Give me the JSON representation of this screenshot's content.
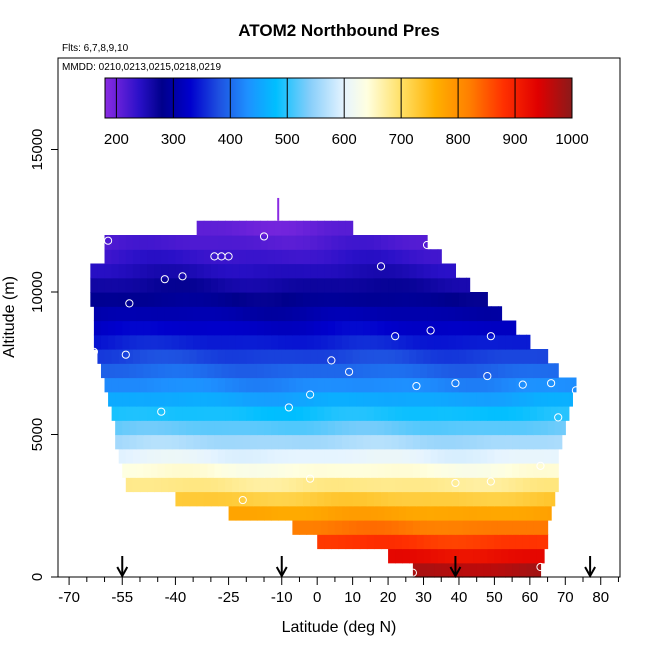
{
  "chart_data": {
    "type": "heatmap",
    "title": "ATOM2 Northbound Pres",
    "flights_note": "Flts: 6,7,8,9,10",
    "dates_note": "MMDD: 0210,0213,0215,0218,0219",
    "xlabel": "Latitude (deg N)",
    "ylabel": "Altitude (m)",
    "xlim": [
      -72,
      86
    ],
    "ylim": [
      0,
      18000
    ],
    "x_ticks": [
      -70,
      -55,
      -40,
      -25,
      -10,
      0,
      10,
      20,
      30,
      40,
      50,
      60,
      70,
      80
    ],
    "x_tick_labels": [
      "-70",
      "-55",
      "-40",
      "-25",
      "-10",
      "0",
      "10",
      "20",
      "30",
      "40",
      "50",
      "60",
      "70",
      "80"
    ],
    "x_minor_ticks": [
      -65,
      -60,
      -50,
      -45,
      -35,
      -30,
      -20,
      -15,
      -5,
      5,
      15,
      25,
      35,
      45,
      55,
      65,
      75,
      85
    ],
    "y_ticks": [
      0,
      5000,
      10000,
      15000
    ],
    "y_tick_labels": [
      "0",
      "5000",
      "10000",
      "15000"
    ],
    "colorbar": {
      "min": 180,
      "max": 1000,
      "ticks": [
        200,
        300,
        400,
        500,
        600,
        700,
        800,
        900,
        1000
      ],
      "tick_labels": [
        "200",
        "300",
        "400",
        "500",
        "600",
        "700",
        "800",
        "900",
        "1000"
      ],
      "gradient_stops": [
        {
          "value": 180,
          "color": "#8a2be2"
        },
        {
          "value": 240,
          "color": "#2a10c8"
        },
        {
          "value": 280,
          "color": "#00008b"
        },
        {
          "value": 330,
          "color": "#0000cd"
        },
        {
          "value": 380,
          "color": "#1e50e0"
        },
        {
          "value": 430,
          "color": "#1e90ff"
        },
        {
          "value": 480,
          "color": "#00bfff"
        },
        {
          "value": 540,
          "color": "#87cefa"
        },
        {
          "value": 600,
          "color": "#e6f4ff"
        },
        {
          "value": 640,
          "color": "#ffffe0"
        },
        {
          "value": 700,
          "color": "#ffe066"
        },
        {
          "value": 760,
          "color": "#ffb000"
        },
        {
          "value": 820,
          "color": "#ff7f00"
        },
        {
          "value": 880,
          "color": "#ff3000"
        },
        {
          "value": 940,
          "color": "#e00000"
        },
        {
          "value": 1000,
          "color": "#8b1a1a"
        }
      ]
    },
    "pressure_profile_by_altitude_m": [
      {
        "alt": 0,
        "pres": 1000
      },
      {
        "alt": 1000,
        "pres": 900
      },
      {
        "alt": 2000,
        "pres": 800
      },
      {
        "alt": 3000,
        "pres": 700
      },
      {
        "alt": 4000,
        "pres": 620
      },
      {
        "alt": 5000,
        "pres": 540
      },
      {
        "alt": 6000,
        "pres": 470
      },
      {
        "alt": 7000,
        "pres": 410
      },
      {
        "alt": 8000,
        "pres": 360
      },
      {
        "alt": 9000,
        "pres": 315
      },
      {
        "alt": 10000,
        "pres": 275
      },
      {
        "alt": 11000,
        "pres": 240
      },
      {
        "alt": 12000,
        "pres": 210
      },
      {
        "alt": 13000,
        "pres": 185
      }
    ],
    "curtain_extent": [
      {
        "alt_top": 500,
        "lat_min": 27,
        "lat_max": 63
      },
      {
        "alt_top": 1000,
        "lat_min": 20,
        "lat_max": 64
      },
      {
        "alt_top": 1500,
        "lat_min": 0,
        "lat_max": 65
      },
      {
        "alt_top": 2000,
        "lat_min": -7,
        "lat_max": 65
      },
      {
        "alt_top": 2500,
        "lat_min": -25,
        "lat_max": 66
      },
      {
        "alt_top": 3000,
        "lat_min": -40,
        "lat_max": 67
      },
      {
        "alt_top": 3500,
        "lat_min": -54,
        "lat_max": 68
      },
      {
        "alt_top": 4000,
        "lat_min": -55,
        "lat_max": 68
      },
      {
        "alt_top": 4500,
        "lat_min": -56,
        "lat_max": 68
      },
      {
        "alt_top": 5000,
        "lat_min": -57,
        "lat_max": 69
      },
      {
        "alt_top": 5500,
        "lat_min": -57,
        "lat_max": 70
      },
      {
        "alt_top": 6000,
        "lat_min": -58,
        "lat_max": 71
      },
      {
        "alt_top": 6500,
        "lat_min": -59,
        "lat_max": 72
      },
      {
        "alt_top": 7000,
        "lat_min": -60,
        "lat_max": 73
      },
      {
        "alt_top": 7500,
        "lat_min": -61,
        "lat_max": 68
      },
      {
        "alt_top": 8000,
        "lat_min": -62,
        "lat_max": 65
      },
      {
        "alt_top": 8500,
        "lat_min": -63,
        "lat_max": 60
      },
      {
        "alt_top": 9000,
        "lat_min": -63,
        "lat_max": 56
      },
      {
        "alt_top": 9500,
        "lat_min": -63,
        "lat_max": 52
      },
      {
        "alt_top": 10000,
        "lat_min": -64,
        "lat_max": 48
      },
      {
        "alt_top": 10500,
        "lat_min": -64,
        "lat_max": 43
      },
      {
        "alt_top": 11000,
        "lat_min": -64,
        "lat_max": 39
      },
      {
        "alt_top": 11500,
        "lat_min": -60,
        "lat_max": 35
      },
      {
        "alt_top": 12000,
        "lat_min": -60,
        "lat_max": 31
      },
      {
        "alt_top": 12500,
        "lat_min": -34,
        "lat_max": 10
      }
    ],
    "obs_points": [
      {
        "lat": 27,
        "alt": 150
      },
      {
        "lat": 63,
        "alt": 350
      },
      {
        "lat": -21,
        "alt": 2700
      },
      {
        "lat": 39,
        "alt": 3300
      },
      {
        "lat": 49,
        "alt": 3350
      },
      {
        "lat": -2,
        "alt": 3450
      },
      {
        "lat": 63,
        "alt": 3900
      },
      {
        "lat": -44,
        "alt": 5800
      },
      {
        "lat": -8,
        "alt": 5950
      },
      {
        "lat": -2,
        "alt": 6400
      },
      {
        "lat": 68,
        "alt": 5600
      },
      {
        "lat": 28,
        "alt": 6700
      },
      {
        "lat": 39,
        "alt": 6800
      },
      {
        "lat": 58,
        "alt": 6750
      },
      {
        "lat": 66,
        "alt": 6800
      },
      {
        "lat": 73,
        "alt": 6550
      },
      {
        "lat": 9,
        "alt": 7200
      },
      {
        "lat": 48,
        "alt": 7050
      },
      {
        "lat": 4,
        "alt": 7600
      },
      {
        "lat": -54,
        "alt": 7800
      },
      {
        "lat": -63,
        "alt": 7900
      },
      {
        "lat": 22,
        "alt": 8450
      },
      {
        "lat": 32,
        "alt": 8650
      },
      {
        "lat": 49,
        "alt": 8450
      },
      {
        "lat": -53,
        "alt": 9600
      },
      {
        "lat": -66,
        "alt": 10600
      },
      {
        "lat": -43,
        "alt": 10450
      },
      {
        "lat": -38,
        "alt": 10550
      },
      {
        "lat": 18,
        "alt": 10900
      },
      {
        "lat": -29,
        "alt": 11250
      },
      {
        "lat": -27,
        "alt": 11250
      },
      {
        "lat": -25,
        "alt": 11250
      },
      {
        "lat": -15,
        "alt": 11950
      },
      {
        "lat": -59,
        "alt": 11800
      },
      {
        "lat": 31,
        "alt": 11650
      }
    ],
    "top_marker": {
      "lat": -11,
      "alt": 12900
    },
    "arrow_latitudes": [
      -55,
      -10,
      39,
      77
    ]
  }
}
